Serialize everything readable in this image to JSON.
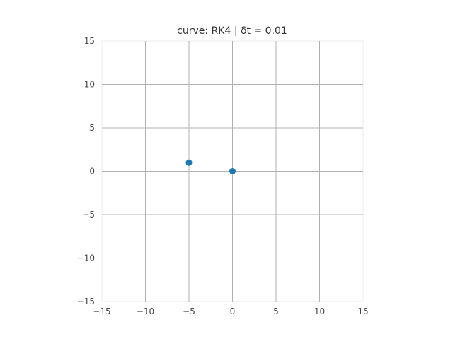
{
  "chart_data": {
    "type": "scatter",
    "title": "curve: RK4 | δt = 0.01",
    "xlabel": "",
    "ylabel": "",
    "xlim": [
      -15,
      15
    ],
    "ylim": [
      -15,
      15
    ],
    "xticks": [
      -15,
      -10,
      -5,
      0,
      5,
      10,
      15
    ],
    "yticks": [
      -15,
      -10,
      -5,
      0,
      5,
      10,
      15
    ],
    "xtick_labels": [
      "−15",
      "−10",
      "−5",
      "0",
      "5",
      "10",
      "15"
    ],
    "ytick_labels": [
      "−15",
      "−10",
      "−5",
      "0",
      "5",
      "10",
      "15"
    ],
    "grid": true,
    "series": [
      {
        "color": "#1f77b4",
        "points": [
          {
            "x": -5,
            "y": 1
          },
          {
            "x": 0,
            "y": 0
          }
        ]
      }
    ]
  }
}
